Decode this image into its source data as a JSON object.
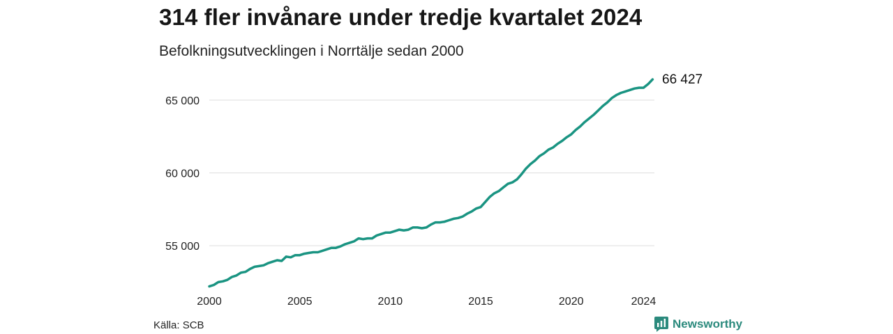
{
  "header": {
    "title": "314 fler invånare under tredje kvartalet 2024",
    "subtitle": "Befolkningsutvecklingen i Norrtälje sedan 2000"
  },
  "footer": {
    "source": "Källa: SCB",
    "brand": "Newsworthy"
  },
  "colors": {
    "line": "#1a9482",
    "grid": "#dddddd",
    "brand": "#2b8a7d"
  },
  "icons": {
    "brand": "newsworthy-logo-icon"
  },
  "chart_data": {
    "type": "line",
    "title": "314 fler invånare under tredje kvartalet 2024",
    "subtitle": "Befolkningsutvecklingen i Norrtälje sedan 2000",
    "xlabel": "",
    "ylabel": "",
    "x_ticks": [
      "2000",
      "2005",
      "2010",
      "2015",
      "2020",
      "2024"
    ],
    "y_ticks": [
      {
        "value": 55000,
        "label": "55 000"
      },
      {
        "value": 60000,
        "label": "60 000"
      },
      {
        "value": 65000,
        "label": "65 000"
      }
    ],
    "xlim": [
      2000,
      2024.6
    ],
    "ylim": [
      51800,
      67100
    ],
    "grid": true,
    "last_value_label": "66 427",
    "series": [
      {
        "x": [
          2000.0,
          2000.25,
          2000.5,
          2000.75,
          2001.0,
          2001.25,
          2001.5,
          2001.75,
          2002.0,
          2002.25,
          2002.5,
          2002.75,
          2003.0,
          2003.25,
          2003.5,
          2003.75,
          2004.0,
          2004.25,
          2004.5,
          2004.75,
          2005.0,
          2005.25,
          2005.5,
          2005.75,
          2006.0,
          2006.25,
          2006.5,
          2006.75,
          2007.0,
          2007.25,
          2007.5,
          2007.75,
          2008.0,
          2008.25,
          2008.5,
          2008.75,
          2009.0,
          2009.25,
          2009.5,
          2009.75,
          2010.0,
          2010.25,
          2010.5,
          2010.75,
          2011.0,
          2011.25,
          2011.5,
          2011.75,
          2012.0,
          2012.25,
          2012.5,
          2012.75,
          2013.0,
          2013.25,
          2013.5,
          2013.75,
          2014.0,
          2014.25,
          2014.5,
          2014.75,
          2015.0,
          2015.25,
          2015.5,
          2015.75,
          2016.0,
          2016.25,
          2016.5,
          2016.75,
          2017.0,
          2017.25,
          2017.5,
          2017.75,
          2018.0,
          2018.25,
          2018.5,
          2018.75,
          2019.0,
          2019.25,
          2019.5,
          2019.75,
          2020.0,
          2020.25,
          2020.5,
          2020.75,
          2021.0,
          2021.25,
          2021.5,
          2021.75,
          2022.0,
          2022.25,
          2022.5,
          2022.75,
          2023.0,
          2023.25,
          2023.5,
          2023.75,
          2024.0,
          2024.25,
          2024.5
        ],
        "values": [
          52200,
          52300,
          52500,
          52550,
          52650,
          52850,
          52950,
          53150,
          53200,
          53400,
          53550,
          53600,
          53650,
          53800,
          53900,
          54000,
          53950,
          54250,
          54200,
          54350,
          54350,
          54450,
          54500,
          54550,
          54550,
          54650,
          54750,
          54850,
          54850,
          54950,
          55100,
          55200,
          55300,
          55500,
          55450,
          55500,
          55500,
          55700,
          55800,
          55900,
          55900,
          56000,
          56100,
          56050,
          56100,
          56250,
          56250,
          56200,
          56250,
          56450,
          56600,
          56600,
          56650,
          56750,
          56850,
          56900,
          57000,
          57200,
          57350,
          57550,
          57650,
          58000,
          58350,
          58600,
          58750,
          59000,
          59250,
          59350,
          59550,
          59900,
          60300,
          60600,
          60850,
          61150,
          61350,
          61600,
          61750,
          62000,
          62200,
          62450,
          62650,
          62950,
          63200,
          63500,
          63750,
          64000,
          64300,
          64600,
          64850,
          65150,
          65350,
          65500,
          65600,
          65700,
          65800,
          65850,
          65850,
          66100,
          66427
        ]
      }
    ]
  }
}
